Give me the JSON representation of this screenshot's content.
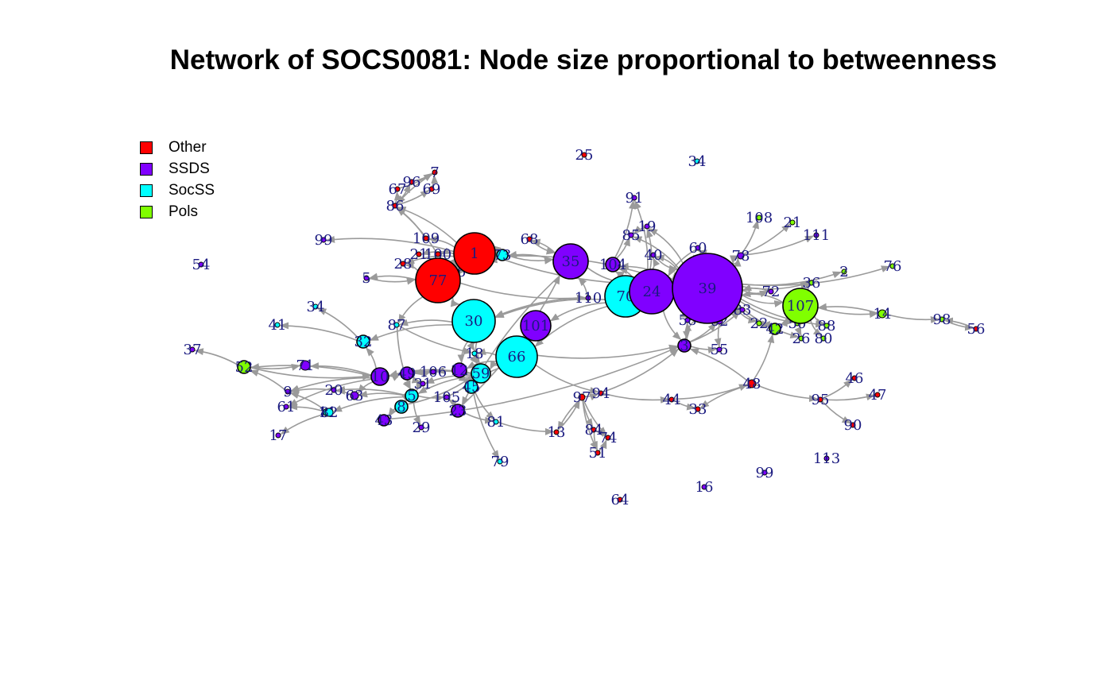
{
  "title": "Network of SOCS0081: Node size proportional to betweenness",
  "colors": {
    "Other": "#ff0000",
    "SSDS": "#8000ff",
    "SocSS": "#00ffff",
    "Pols": "#80ff00",
    "edge": "#9a9a9a",
    "label": "#1a1a80"
  },
  "legend": [
    {
      "label": "Other",
      "group": "Other"
    },
    {
      "label": "SSDS",
      "group": "SSDS"
    },
    {
      "label": "SocSS",
      "group": "SocSS"
    },
    {
      "label": "Pols",
      "group": "Pols"
    }
  ],
  "nodes": [
    {
      "id": "39",
      "group": "SSDS",
      "size": 44
    },
    {
      "id": "24",
      "group": "SSDS",
      "size": 28
    },
    {
      "id": "77",
      "group": "Other",
      "size": 28
    },
    {
      "id": "1",
      "group": "Other",
      "size": 26
    },
    {
      "id": "30",
      "group": "SocSS",
      "size": 27
    },
    {
      "id": "66",
      "group": "SocSS",
      "size": 26
    },
    {
      "id": "70",
      "group": "SocSS",
      "size": 26
    },
    {
      "id": "35",
      "group": "SSDS",
      "size": 22
    },
    {
      "id": "107",
      "group": "Pols",
      "size": 22
    },
    {
      "id": "101",
      "group": "SSDS",
      "size": 19
    },
    {
      "id": "59",
      "group": "SocSS",
      "size": 12
    },
    {
      "id": "10",
      "group": "SSDS",
      "size": 11
    },
    {
      "id": "104",
      "group": "SSDS",
      "size": 9
    },
    {
      "id": "3",
      "group": "SSDS",
      "size": 8
    },
    {
      "id": "5",
      "group": "SocSS",
      "size": 8
    },
    {
      "id": "32",
      "group": "SocSS",
      "size": 8
    },
    {
      "id": "23",
      "group": "SSDS",
      "size": 8
    },
    {
      "id": "49",
      "group": "SSDS",
      "size": 8
    },
    {
      "id": "45",
      "group": "SocSS",
      "size": 8
    },
    {
      "id": "8",
      "group": "SocSS",
      "size": 8
    },
    {
      "id": "52",
      "group": "Pols",
      "size": 8
    },
    {
      "id": "42",
      "group": "Pols",
      "size": 7
    },
    {
      "id": "43",
      "group": "SSDS",
      "size": 7
    },
    {
      "id": "12",
      "group": "SSDS",
      "size": 9
    },
    {
      "id": "73",
      "group": "SocSS",
      "size": 7
    },
    {
      "id": "71",
      "group": "SSDS",
      "size": 6
    },
    {
      "id": "14",
      "group": "Pols",
      "size": 5
    },
    {
      "id": "63",
      "group": "SSDS",
      "size": 5
    },
    {
      "id": "11",
      "group": "SocSS",
      "size": 5
    },
    {
      "id": "82",
      "group": "SocSS",
      "size": 5
    },
    {
      "id": "48",
      "group": "Other",
      "size": 5
    },
    {
      "id": "62",
      "group": "SSDS",
      "size": 4
    },
    {
      "id": "78",
      "group": "SSDS",
      "size": 4
    },
    {
      "id": "97",
      "group": "Other",
      "size": 4
    },
    {
      "id": "7",
      "group": "Other",
      "size": 3
    },
    {
      "id": "96",
      "group": "Other",
      "size": 3
    },
    {
      "id": "67",
      "group": "Other",
      "size": 3
    },
    {
      "id": "69",
      "group": "Other",
      "size": 3
    },
    {
      "id": "86",
      "group": "Other",
      "size": 3
    },
    {
      "id": "109",
      "group": "Other",
      "size": 3
    },
    {
      "id": "19",
      "group": "SSDS",
      "size": 3
    },
    {
      "id": "21",
      "group": "Other",
      "size": 3
    },
    {
      "id": "100",
      "group": "Other",
      "size": 3
    },
    {
      "id": "28",
      "group": "Other",
      "size": 3
    },
    {
      "id": "75",
      "group": "Other",
      "size": 3
    },
    {
      "id": "68",
      "group": "Other",
      "size": 3
    },
    {
      "id": "85",
      "group": "SSDS",
      "size": 3
    },
    {
      "id": "91",
      "group": "SSDS",
      "size": 3
    },
    {
      "id": "40",
      "group": "SSDS",
      "size": 3
    },
    {
      "id": "60",
      "group": "SSDS",
      "size": 3
    },
    {
      "id": "27",
      "group": "SSDS",
      "size": 3
    },
    {
      "id": "110",
      "group": "SSDS",
      "size": 3
    },
    {
      "id": "18",
      "group": "SocSS",
      "size": 3
    },
    {
      "id": "87",
      "group": "SocSS",
      "size": 3
    },
    {
      "id": "106",
      "group": "SSDS",
      "size": 3
    },
    {
      "id": "31",
      "group": "SSDS",
      "size": 3
    },
    {
      "id": "105",
      "group": "SSDS",
      "size": 3
    },
    {
      "id": "20",
      "group": "SSDS",
      "size": 3
    },
    {
      "id": "9",
      "group": "SSDS",
      "size": 3
    },
    {
      "id": "61",
      "group": "SSDS",
      "size": 3
    },
    {
      "id": "29",
      "group": "SSDS",
      "size": 3
    },
    {
      "id": "81",
      "group": "SocSS",
      "size": 3
    },
    {
      "id": "79",
      "group": "SocSS",
      "size": 3
    },
    {
      "id": "17",
      "group": "SSDS",
      "size": 3
    },
    {
      "id": "13",
      "group": "Other",
      "size": 3
    },
    {
      "id": "84",
      "group": "Other",
      "size": 3
    },
    {
      "id": "74",
      "group": "Other",
      "size": 3
    },
    {
      "id": "51",
      "group": "Other",
      "size": 3
    },
    {
      "id": "94",
      "group": "Other",
      "size": 3
    },
    {
      "id": "44",
      "group": "Other",
      "size": 3
    },
    {
      "id": "33",
      "group": "Other",
      "size": 3
    },
    {
      "id": "58",
      "group": "SSDS",
      "size": 3
    },
    {
      "id": "55",
      "group": "SSDS",
      "size": 3
    },
    {
      "id": "83",
      "group": "SSDS",
      "size": 3
    },
    {
      "id": "72",
      "group": "SSDS",
      "size": 3
    },
    {
      "id": "36",
      "group": "Pols",
      "size": 3
    },
    {
      "id": "22",
      "group": "Pols",
      "size": 3
    },
    {
      "id": "50",
      "group": "Pols",
      "size": 3
    },
    {
      "id": "88",
      "group": "Pols",
      "size": 3
    },
    {
      "id": "26",
      "group": "Pols",
      "size": 3
    },
    {
      "id": "80",
      "group": "Pols",
      "size": 3
    },
    {
      "id": "2",
      "group": "Pols",
      "size": 3
    },
    {
      "id": "76",
      "group": "Pols",
      "size": 3
    },
    {
      "id": "98",
      "group": "Pols",
      "size": 3
    },
    {
      "id": "56",
      "group": "Other",
      "size": 3
    },
    {
      "id": "46",
      "group": "Other",
      "size": 3
    },
    {
      "id": "47",
      "group": "Other",
      "size": 3
    },
    {
      "id": "95",
      "group": "Other",
      "size": 3
    },
    {
      "id": "90",
      "group": "Other",
      "size": 3
    },
    {
      "id": "108",
      "group": "Pols",
      "size": 3
    },
    {
      "id": "21b",
      "label": "21",
      "group": "Pols",
      "size": 3
    },
    {
      "id": "111",
      "group": "SSDS",
      "size": 3
    },
    {
      "id": "25",
      "group": "Other",
      "size": 3
    },
    {
      "id": "34a",
      "label": "34",
      "group": "SocSS",
      "size": 3
    },
    {
      "id": "54",
      "group": "SSDS",
      "size": 3
    },
    {
      "id": "99a",
      "label": "99",
      "group": "SSDS",
      "size": 3
    },
    {
      "id": "5b",
      "label": "5",
      "group": "SSDS",
      "size": 3
    },
    {
      "id": "34b",
      "label": "34",
      "group": "SocSS",
      "size": 3
    },
    {
      "id": "41",
      "group": "SocSS",
      "size": 3
    },
    {
      "id": "37",
      "group": "SSDS",
      "size": 3
    },
    {
      "id": "113",
      "group": "SSDS",
      "size": 3
    },
    {
      "id": "99b",
      "label": "99",
      "group": "SSDS",
      "size": 3
    },
    {
      "id": "16",
      "group": "SSDS",
      "size": 3
    },
    {
      "id": "64",
      "group": "Other",
      "size": 3
    }
  ]
}
